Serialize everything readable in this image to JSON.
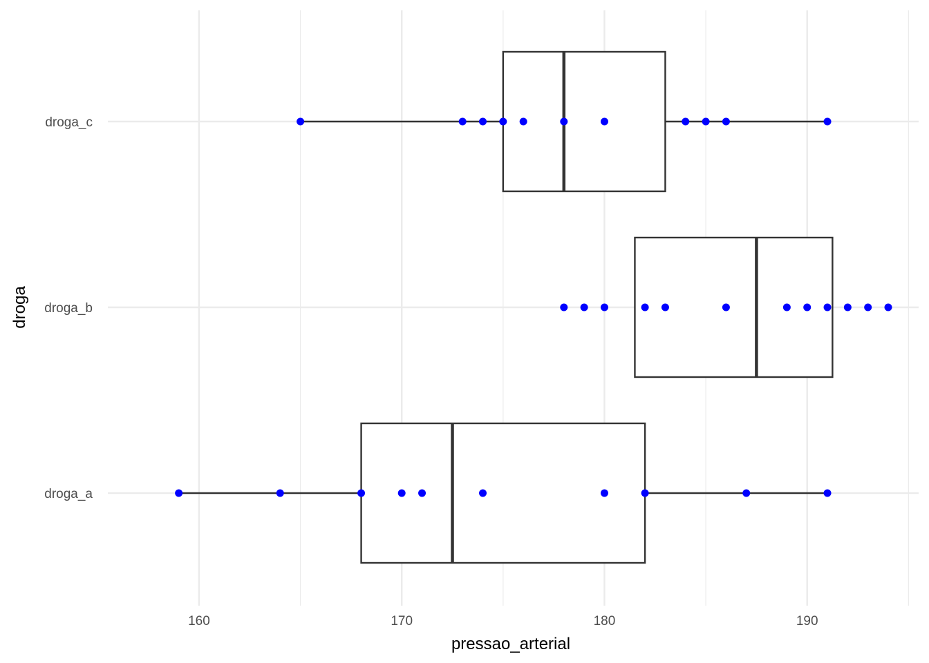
{
  "chart_data": {
    "type": "boxplot",
    "orientation": "horizontal",
    "xlabel": "pressao_arterial",
    "ylabel": "droga",
    "xlim": [
      155.5,
      195.5
    ],
    "x_ticks": [
      160,
      170,
      180,
      190
    ],
    "x_minor_ticks": [
      165,
      175,
      185,
      195
    ],
    "grid": true,
    "categories": [
      "droga_a",
      "droga_b",
      "droga_c"
    ],
    "boxes": [
      {
        "category": "droga_a",
        "whisker_low": 159,
        "q1": 168,
        "median": 172.5,
        "q3": 182,
        "whisker_high": 191
      },
      {
        "category": "droga_b",
        "whisker_low": 181.5,
        "q1": 181.5,
        "median": 187.5,
        "q3": 191.25,
        "whisker_high": 191.25
      },
      {
        "category": "droga_c",
        "whisker_low": 165,
        "q1": 175,
        "median": 178,
        "q3": 183,
        "whisker_high": 191
      }
    ],
    "points": [
      {
        "category": "droga_a",
        "values": [
          159,
          164,
          168,
          170,
          171,
          174,
          180,
          182,
          187,
          191
        ]
      },
      {
        "category": "droga_b",
        "values": [
          178,
          179,
          180,
          182,
          183,
          186,
          189,
          190,
          191,
          192,
          193,
          194
        ]
      },
      {
        "category": "droga_c",
        "values": [
          165,
          173,
          174,
          175,
          176,
          178,
          180,
          184,
          185,
          186,
          191
        ]
      }
    ],
    "colors": {
      "points": "#0000ff",
      "box_stroke": "#333333",
      "grid": "#ebebeb",
      "box_fill": "#ffffff"
    }
  }
}
